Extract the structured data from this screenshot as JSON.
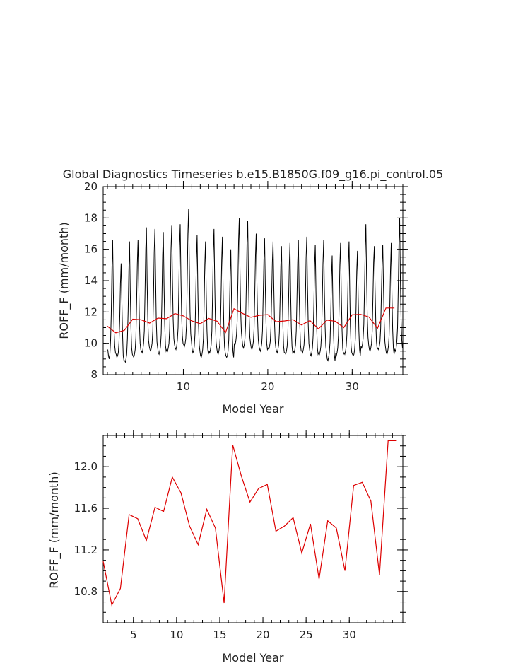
{
  "title": "Global Diagnostics Timeseries b.e15.B1850G.f09_g16.pi_control.05",
  "chart_data": [
    {
      "type": "line",
      "xlabel": "Model Year",
      "ylabel": "ROFF_F (mm/month)",
      "xlim": [
        0.5,
        36
      ],
      "ylim": [
        8,
        20
      ],
      "xticks": [
        10,
        20,
        30
      ],
      "yticks": [
        8,
        10,
        12,
        14,
        16,
        18,
        20
      ],
      "grid": false,
      "series": [
        {
          "kind": "monthly",
          "color": "#000000",
          "values": [
            9.6,
            9.2,
            9.0,
            9.3,
            10.2,
            11.8,
            14.8,
            16.6,
            13.2,
            10.8,
            9.8,
            9.4,
            9.3,
            9.1,
            9.2,
            9.4,
            10.1,
            11.5,
            13.8,
            15.1,
            12.8,
            10.6,
            9.2,
            8.9,
            8.9,
            8.8,
            9.0,
            9.3,
            10.3,
            12.0,
            14.6,
            16.5,
            13.4,
            11.0,
            9.7,
            9.3,
            9.2,
            9.1,
            9.3,
            9.6,
            10.4,
            12.6,
            15.1,
            16.6,
            13.8,
            11.2,
            10.0,
            9.6,
            9.5,
            9.4,
            9.6,
            10.0,
            10.8,
            13.2,
            16.0,
            17.4,
            14.0,
            11.4,
            10.2,
            9.8,
            9.6,
            9.5,
            9.7,
            10.0,
            10.8,
            13.0,
            15.8,
            17.3,
            14.2,
            11.5,
            10.1,
            9.7,
            9.4,
            9.3,
            9.5,
            9.8,
            10.6,
            12.8,
            15.6,
            17.1,
            13.8,
            11.2,
            9.9,
            9.5,
            9.6,
            9.5,
            9.7,
            10.0,
            10.9,
            13.2,
            16.0,
            17.5,
            14.1,
            11.6,
            10.3,
            9.9,
            9.7,
            9.6,
            9.8,
            10.2,
            11.0,
            13.4,
            16.2,
            17.6,
            14.3,
            11.8,
            10.5,
            10.0,
            9.9,
            9.8,
            10.0,
            10.3,
            11.2,
            14.0,
            17.0,
            18.6,
            15.0,
            12.0,
            10.6,
            10.1,
            9.6,
            9.4,
            9.5,
            9.8,
            10.6,
            12.8,
            15.4,
            16.9,
            13.6,
            11.2,
            9.9,
            9.5,
            9.2,
            9.1,
            9.3,
            9.6,
            10.3,
            12.4,
            15.0,
            16.5,
            13.3,
            10.9,
            9.7,
            9.3,
            9.5,
            9.4,
            9.6,
            9.9,
            10.8,
            13.1,
            15.9,
            17.3,
            14.0,
            11.4,
            10.1,
            9.7,
            9.4,
            9.3,
            9.5,
            9.8,
            10.5,
            12.7,
            15.3,
            16.8,
            13.5,
            11.1,
            9.8,
            9.4,
            9.2,
            9.1,
            9.2,
            9.5,
            10.2,
            12.2,
            14.6,
            16.0,
            12.9,
            10.7,
            9.5,
            9.1,
            10.0,
            9.9,
            10.1,
            10.5,
            11.4,
            13.8,
            16.6,
            18.0,
            14.6,
            12.0,
            10.7,
            10.2,
            9.8,
            9.7,
            9.9,
            10.3,
            11.2,
            13.6,
            16.4,
            17.8,
            14.4,
            11.8,
            10.4,
            10.0,
            9.7,
            9.6,
            9.8,
            10.1,
            10.9,
            13.2,
            15.6,
            17.0,
            13.9,
            11.5,
            10.2,
            9.8,
            9.6,
            9.5,
            9.7,
            10.0,
            10.8,
            13.0,
            15.3,
            16.7,
            13.7,
            11.3,
            10.0,
            9.6,
            9.7,
            9.6,
            9.8,
            10.1,
            11.0,
            13.1,
            15.2,
            16.5,
            13.8,
            11.4,
            10.1,
            9.7,
            9.5,
            9.4,
            9.6,
            9.9,
            10.7,
            12.7,
            14.9,
            16.2,
            13.4,
            11.1,
            9.8,
            9.4,
            9.4,
            9.3,
            9.5,
            9.8,
            10.6,
            12.6,
            14.9,
            16.4,
            13.4,
            11.0,
            9.8,
            9.4,
            9.5,
            9.4,
            9.6,
            9.9,
            10.8,
            12.9,
            15.2,
            16.6,
            13.6,
            11.2,
            9.9,
            9.5,
            9.5,
            9.4,
            9.6,
            9.9,
            10.8,
            12.9,
            15.4,
            16.8,
            13.7,
            11.3,
            10.0,
            9.6,
            9.3,
            9.2,
            9.4,
            9.7,
            10.5,
            12.4,
            14.9,
            16.3,
            13.3,
            11.0,
            9.7,
            9.3,
            9.4,
            9.3,
            9.5,
            9.8,
            10.6,
            12.6,
            15.1,
            16.6,
            13.4,
            11.1,
            9.8,
            9.4,
            9.0,
            8.9,
            9.1,
            9.4,
            10.1,
            11.8,
            14.2,
            15.6,
            12.6,
            10.5,
            9.3,
            8.9,
            9.3,
            9.2,
            9.4,
            9.7,
            10.5,
            12.4,
            15.0,
            16.4,
            13.3,
            11.0,
            9.7,
            9.3,
            9.4,
            9.3,
            9.5,
            9.8,
            10.6,
            12.6,
            15.1,
            16.5,
            13.4,
            11.1,
            9.8,
            9.4,
            9.3,
            9.2,
            9.3,
            9.6,
            10.3,
            12.2,
            14.6,
            15.9,
            13.0,
            10.8,
            9.6,
            9.2,
            9.8,
            9.7,
            9.9,
            10.3,
            11.2,
            13.5,
            16.2,
            17.6,
            14.3,
            11.7,
            10.4,
            9.9,
            9.6,
            9.5,
            9.7,
            10.0,
            10.8,
            12.9,
            15.2,
            16.2,
            13.6,
            11.4,
            10.1,
            9.6,
            9.7,
            9.6,
            9.8,
            10.1,
            10.9,
            13.0,
            15.1,
            16.3,
            13.7,
            11.4,
            10.1,
            9.7,
            9.4,
            9.3,
            9.5,
            9.8,
            10.5,
            12.4,
            14.8,
            16.4,
            13.2,
            10.9,
            9.7,
            9.3,
            9.6,
            9.5,
            9.7,
            10.1,
            11.0,
            13.5,
            16.4,
            18.0,
            14.2,
            11.6,
            10.2,
            9.7
          ]
        },
        {
          "kind": "annual",
          "color": "#dd0000",
          "x": [
            1,
            2,
            3,
            4,
            5,
            6,
            7,
            8,
            9,
            10,
            11,
            12,
            13,
            14,
            15,
            16,
            17,
            18,
            19,
            20,
            21,
            22,
            23,
            24,
            25,
            26,
            27,
            28,
            29,
            30,
            31,
            32,
            33,
            34,
            35
          ],
          "values": [
            11.09,
            10.67,
            10.83,
            11.54,
            11.5,
            11.29,
            11.61,
            11.57,
            11.9,
            11.75,
            11.43,
            11.25,
            11.59,
            11.41,
            10.69,
            12.21,
            11.91,
            11.66,
            11.79,
            11.83,
            11.38,
            11.43,
            11.51,
            11.17,
            11.45,
            10.92,
            11.48,
            11.41,
            11.0,
            11.82,
            11.85,
            11.67,
            10.96,
            12.25,
            12.25
          ]
        }
      ]
    },
    {
      "type": "line",
      "xlabel": "Model Year",
      "ylabel": "ROFF_F (mm/month)",
      "xlim": [
        1.5,
        36.2
      ],
      "ylim": [
        10.5,
        12.3
      ],
      "xticks": [
        5,
        10,
        15,
        20,
        25,
        30
      ],
      "yticks": [
        10.8,
        11.2,
        11.6,
        12.0
      ],
      "ytick_labels": [
        "10.8",
        "11.2",
        "11.6",
        "12.0"
      ],
      "grid": false,
      "series": [
        {
          "kind": "annual",
          "color": "#dd0000",
          "x": [
            1.5,
            2.5,
            3.5,
            4.5,
            5.5,
            6.5,
            7.5,
            8.5,
            9.5,
            10.5,
            11.5,
            12.5,
            13.5,
            14.5,
            15.5,
            16.5,
            17.5,
            18.5,
            19.5,
            20.5,
            21.5,
            22.5,
            23.5,
            24.5,
            25.5,
            26.5,
            27.5,
            28.5,
            29.5,
            30.5,
            31.5,
            32.5,
            33.5,
            34.5,
            35.5
          ],
          "values": [
            11.09,
            10.67,
            10.83,
            11.54,
            11.5,
            11.29,
            11.61,
            11.57,
            11.9,
            11.75,
            11.43,
            11.25,
            11.59,
            11.41,
            10.69,
            12.21,
            11.91,
            11.66,
            11.79,
            11.83,
            11.38,
            11.43,
            11.51,
            11.17,
            11.45,
            10.92,
            11.48,
            11.41,
            11.0,
            11.82,
            11.85,
            11.67,
            10.96,
            12.25,
            12.25
          ]
        }
      ]
    }
  ]
}
